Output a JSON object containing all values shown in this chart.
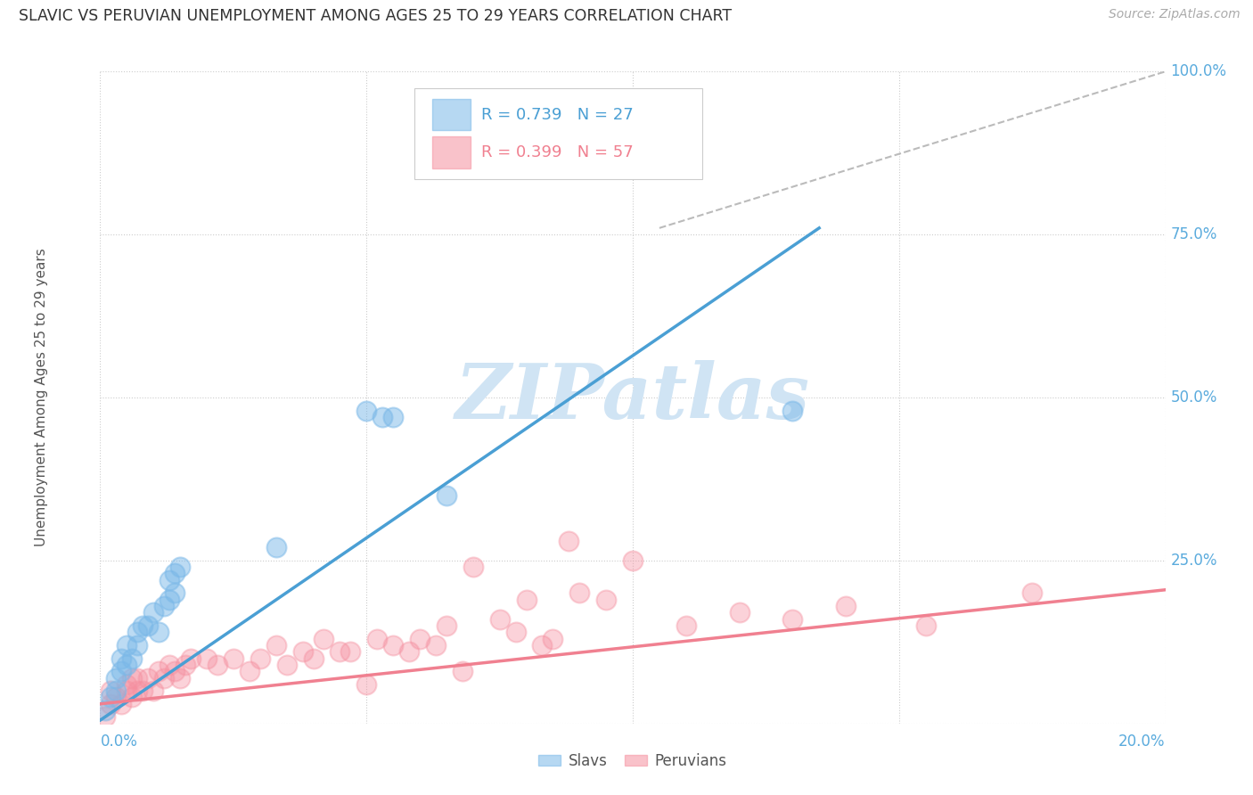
{
  "title": "SLAVIC VS PERUVIAN UNEMPLOYMENT AMONG AGES 25 TO 29 YEARS CORRELATION CHART",
  "source": "Source: ZipAtlas.com",
  "ylabel": "Unemployment Among Ages 25 to 29 years",
  "legend_slavs": "Slavs",
  "legend_peruvians": "Peruvians",
  "slav_R": 0.739,
  "slav_N": 27,
  "peruvian_R": 0.399,
  "peruvian_N": 57,
  "slav_color": "#7ab8e8",
  "peruvian_color": "#f590a0",
  "slav_line_color": "#4a9fd4",
  "peruvian_line_color": "#f08090",
  "watermark_text": "ZIPatlas",
  "watermark_color": "#d0e4f4",
  "background_color": "#ffffff",
  "grid_color": "#cccccc",
  "xmin": 0.0,
  "xmax": 0.2,
  "ymin": 0.0,
  "ymax": 1.0,
  "slav_line_x": [
    0.0,
    0.135
  ],
  "slav_line_y": [
    0.005,
    0.76
  ],
  "peruvian_line_x": [
    0.0,
    0.2
  ],
  "peruvian_line_y": [
    0.03,
    0.205
  ],
  "ref_line_x": [
    0.105,
    0.2
  ],
  "ref_line_y": [
    0.76,
    1.0
  ],
  "slav_x": [
    0.001,
    0.002,
    0.003,
    0.003,
    0.004,
    0.004,
    0.005,
    0.005,
    0.006,
    0.007,
    0.007,
    0.008,
    0.009,
    0.01,
    0.011,
    0.012,
    0.013,
    0.013,
    0.014,
    0.014,
    0.015,
    0.033,
    0.05,
    0.053,
    0.055,
    0.065,
    0.13
  ],
  "slav_y": [
    0.02,
    0.04,
    0.05,
    0.07,
    0.08,
    0.1,
    0.09,
    0.12,
    0.1,
    0.12,
    0.14,
    0.15,
    0.15,
    0.17,
    0.14,
    0.18,
    0.19,
    0.22,
    0.2,
    0.23,
    0.24,
    0.27,
    0.48,
    0.47,
    0.47,
    0.35,
    0.48
  ],
  "peruvian_x": [
    0.001,
    0.002,
    0.002,
    0.003,
    0.004,
    0.005,
    0.005,
    0.006,
    0.006,
    0.007,
    0.007,
    0.008,
    0.009,
    0.01,
    0.011,
    0.012,
    0.013,
    0.014,
    0.015,
    0.016,
    0.017,
    0.02,
    0.022,
    0.025,
    0.028,
    0.03,
    0.033,
    0.035,
    0.038,
    0.04,
    0.042,
    0.045,
    0.047,
    0.05,
    0.052,
    0.055,
    0.058,
    0.06,
    0.063,
    0.065,
    0.068,
    0.07,
    0.075,
    0.078,
    0.08,
    0.083,
    0.085,
    0.088,
    0.09,
    0.095,
    0.1,
    0.11,
    0.12,
    0.13,
    0.14,
    0.155,
    0.175
  ],
  "peruvian_y": [
    0.01,
    0.03,
    0.05,
    0.04,
    0.03,
    0.05,
    0.06,
    0.04,
    0.07,
    0.05,
    0.07,
    0.05,
    0.07,
    0.05,
    0.08,
    0.07,
    0.09,
    0.08,
    0.07,
    0.09,
    0.1,
    0.1,
    0.09,
    0.1,
    0.08,
    0.1,
    0.12,
    0.09,
    0.11,
    0.1,
    0.13,
    0.11,
    0.11,
    0.06,
    0.13,
    0.12,
    0.11,
    0.13,
    0.12,
    0.15,
    0.08,
    0.24,
    0.16,
    0.14,
    0.19,
    0.12,
    0.13,
    0.28,
    0.2,
    0.19,
    0.25,
    0.15,
    0.17,
    0.16,
    0.18,
    0.15,
    0.2
  ]
}
